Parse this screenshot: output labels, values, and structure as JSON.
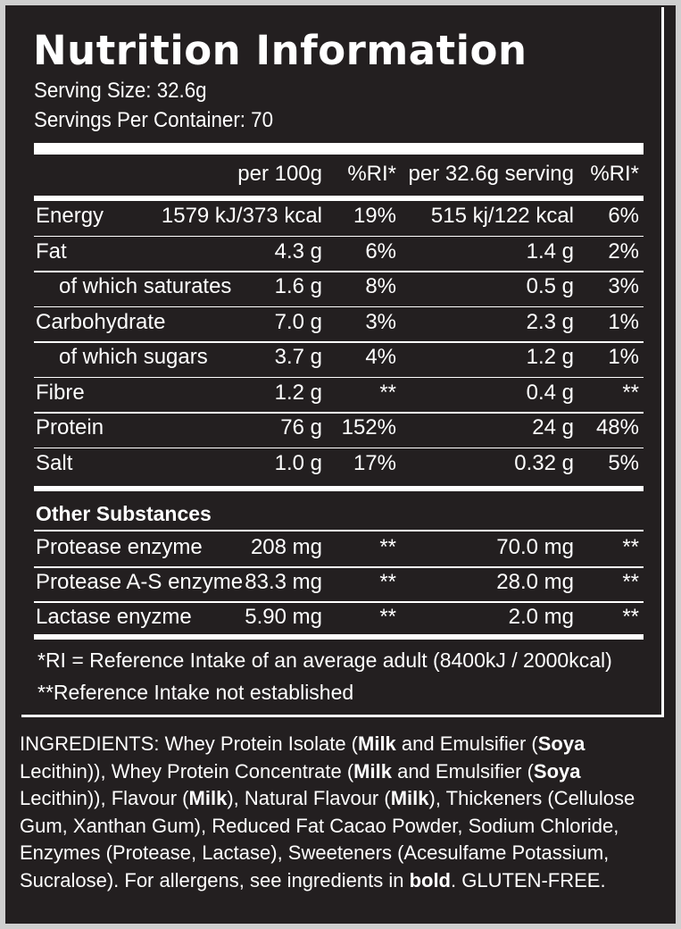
{
  "title": "Nutrition Information",
  "serving_size": "Serving Size: 32.6g",
  "servings_per_container": "Servings Per Container: 70",
  "columns": {
    "per100": "per 100g",
    "ri1": "%RI*",
    "perServing": "per 32.6g serving",
    "ri2": "%RI*"
  },
  "nutrients": [
    {
      "name": "Energy",
      "per100": "1579 kJ/373 kcal",
      "ri1": "19%",
      "perServing": "515 kj/122 kcal",
      "ri2": "6%"
    },
    {
      "name": "Fat",
      "per100": "4.3 g",
      "ri1": "6%",
      "perServing": "1.4 g",
      "ri2": "2%"
    },
    {
      "name": "of which saturates",
      "per100": "1.6 g",
      "ri1": "8%",
      "perServing": "0.5 g",
      "ri2": "3%"
    },
    {
      "name": "Carbohydrate",
      "per100": "7.0 g",
      "ri1": "3%",
      "perServing": "2.3 g",
      "ri2": "1%"
    },
    {
      "name": "of which sugars",
      "per100": "3.7 g",
      "ri1": "4%",
      "perServing": "1.2 g",
      "ri2": "1%"
    },
    {
      "name": "Fibre",
      "per100": "1.2 g",
      "ri1": "**",
      "perServing": "0.4 g",
      "ri2": "**"
    },
    {
      "name": "Protein",
      "per100": "76 g",
      "ri1": "152%",
      "perServing": "24 g",
      "ri2": "48%"
    },
    {
      "name": "Salt",
      "per100": "1.0 g",
      "ri1": "17%",
      "perServing": "0.32 g",
      "ri2": "5%"
    }
  ],
  "other_title": "Other Substances",
  "others": [
    {
      "name": "Protease enzyme",
      "per100": "208 mg",
      "ri1": "**",
      "perServing": "70.0 mg",
      "ri2": "**"
    },
    {
      "name": "Protease A-S enzyme",
      "per100": "83.3 mg",
      "ri1": "**",
      "perServing": "28.0 mg",
      "ri2": "**"
    },
    {
      "name": "Lactase enyzme",
      "per100": "5.90 mg",
      "ri1": "**",
      "perServing": "2.0 mg",
      "ri2": "**"
    }
  ],
  "notes": {
    "ri": "*RI = Reference Intake of an average adult (8400kJ / 2000kcal)",
    "not_established": "**Reference Intake not established"
  },
  "ingredients": {
    "p1": "INGREDIENTS: Whey Protein Isolate (",
    "b1": "Milk",
    "p2": " and Emulsifier (",
    "b2": "Soya",
    "p3": " Lecithin)), Whey Protein Concentrate (",
    "b3": "Milk",
    "p4": " and Emulsifier (",
    "b4": "Soya",
    "p5": " Lecithin)), Flavour (",
    "b5": "Milk",
    "p6": "), Natural Flavour (",
    "b6": "Milk",
    "p7": "), Thickeners (Cellulose Gum, Xanthan Gum), Reduced Fat Cacao Powder, Sodium Chloride, Enzymes (Protease, Lactase), Sweeteners (Acesulfame Potassium, Sucralose). For allergens, see ingredients in ",
    "b7": "bold",
    "p8": ". GLUTEN-FREE."
  }
}
